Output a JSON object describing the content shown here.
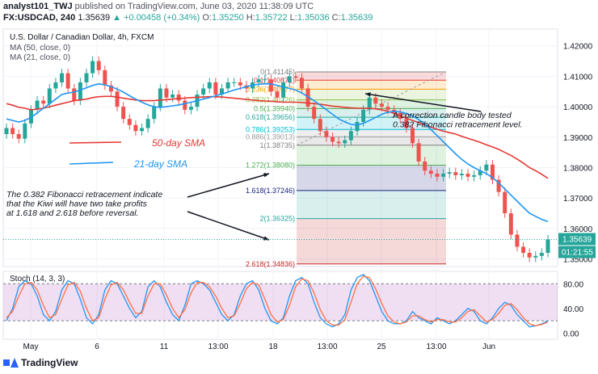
{
  "header": {
    "author": "analyst101_TWJ",
    "published": " published on TradingView.com, June 03, 2020 11:38:09 UTC",
    "symbol": "FX:USDCAD, 240",
    "last": "1.35639",
    "change": "+0.00458 (+0.34%)",
    "o_label": "O:",
    "o": "1.35250",
    "h_label": "H:",
    "h": "1.35722",
    "l_label": "L:",
    "l": "1.35036",
    "c_label": "C:",
    "c": "1.35639"
  },
  "footer": {
    "brand": "TradingView"
  },
  "chart_data": [
    {
      "type": "candlestick",
      "title": "U.S. Dollar / Canadian Dollar, 4h, FXCM",
      "indicators": [
        "MA (50, close, 0)",
        "MA (21, close, 0)"
      ],
      "x_ticks": [
        "May",
        "6",
        "11",
        "13:00",
        "18",
        "13:00",
        "25",
        "13:00",
        "Jun"
      ],
      "y_ticks": [
        "1.42000",
        "1.41000",
        "1.40000",
        "1.39000",
        "1.38000",
        "1.37000",
        "1.36000",
        "1.35000"
      ],
      "ylim": [
        1.3475,
        1.4255
      ],
      "last_price_label": "1.35639",
      "countdown_label": "01:21:55",
      "colors": {
        "up": "#26a69a",
        "down": "#ef5350",
        "sma50": "#e53935",
        "sma21": "#2196f3"
      },
      "close_series": [
        1.393,
        1.391,
        1.3895,
        1.3945,
        1.399,
        1.402,
        1.401,
        1.406,
        1.408,
        1.411,
        1.406,
        1.402,
        1.408,
        1.411,
        1.415,
        1.412,
        1.407,
        1.405,
        1.4,
        1.396,
        1.394,
        1.392,
        1.393,
        1.396,
        1.4,
        1.406,
        1.403,
        1.404,
        1.402,
        1.399,
        1.4,
        1.404,
        1.406,
        1.408,
        1.404,
        1.406,
        1.408,
        1.408,
        1.407,
        1.406,
        1.408,
        1.409,
        1.409,
        1.405,
        1.403,
        1.408,
        1.41,
        1.4095,
        1.406,
        1.4,
        1.396,
        1.392,
        1.39,
        1.3885,
        1.388,
        1.389,
        1.392,
        1.395,
        1.399,
        1.403,
        1.401,
        1.4,
        1.399,
        1.398,
        1.396,
        1.393,
        1.388,
        1.382,
        1.379,
        1.378,
        1.377,
        1.378,
        1.3785,
        1.3775,
        1.378,
        1.377,
        1.3775,
        1.379,
        1.381,
        1.376,
        1.372,
        1.365,
        1.358,
        1.354,
        1.352,
        1.3505,
        1.351,
        1.352,
        1.3564
      ],
      "sma50_series": [
        1.401,
        1.4005,
        1.3998,
        1.3995,
        1.399,
        1.3992,
        1.3995,
        1.4,
        1.4005,
        1.401,
        1.4015,
        1.402,
        1.4022,
        1.4025,
        1.403,
        1.4033,
        1.4034,
        1.4034,
        1.4032,
        1.4028,
        1.4025,
        1.4022,
        1.402,
        1.402,
        1.402,
        1.4022,
        1.4023,
        1.4025,
        1.4027,
        1.4028,
        1.403,
        1.4031,
        1.4032,
        1.4033,
        1.4033,
        1.4032,
        1.403,
        1.4028,
        1.4026,
        1.4024,
        1.4022,
        1.402,
        1.4019,
        1.4018,
        1.4016,
        1.4015,
        1.4015,
        1.4015,
        1.4014,
        1.4012,
        1.401,
        1.4008,
        1.4005,
        1.4002,
        1.4,
        1.3998,
        1.3996,
        1.3995,
        1.3995,
        1.3995,
        1.3993,
        1.399,
        1.3985,
        1.3978,
        1.397,
        1.3962,
        1.3955,
        1.3948,
        1.394,
        1.3933,
        1.3926,
        1.392,
        1.3915,
        1.391,
        1.3903,
        1.3896,
        1.389,
        1.3883,
        1.3875,
        1.3868,
        1.386,
        1.385,
        1.384,
        1.3828,
        1.3815,
        1.38,
        1.379,
        1.3778,
        1.3765
      ],
      "sma21_series": [
        1.396,
        1.3955,
        1.395,
        1.3955,
        1.3965,
        1.398,
        1.3995,
        1.401,
        1.4025,
        1.404,
        1.4045,
        1.4048,
        1.4055,
        1.4062,
        1.407,
        1.4075,
        1.4072,
        1.4066,
        1.4058,
        1.4048,
        1.4036,
        1.4025,
        1.4015,
        1.4006,
        1.4,
        1.3998,
        1.4,
        1.4003,
        1.4006,
        1.401,
        1.4015,
        1.402,
        1.4025,
        1.403,
        1.4036,
        1.4042,
        1.4048,
        1.4055,
        1.406,
        1.4066,
        1.407,
        1.4074,
        1.4075,
        1.4075,
        1.407,
        1.4065,
        1.406,
        1.4055,
        1.4045,
        1.4033,
        1.402,
        1.4005,
        1.399,
        1.3975,
        1.396,
        1.395,
        1.3942,
        1.394,
        1.3945,
        1.3955,
        1.3965,
        1.3975,
        1.3982,
        1.3985,
        1.3983,
        1.3978,
        1.397,
        1.3958,
        1.3943,
        1.3925,
        1.3905,
        1.3885,
        1.3865,
        1.3845,
        1.3827,
        1.3812,
        1.38,
        1.379,
        1.378,
        1.3767,
        1.375,
        1.373,
        1.371,
        1.369,
        1.367,
        1.365,
        1.364,
        1.363,
        1.3623
      ],
      "fibonacci": [
        {
          "label": "0(1.41145)",
          "price": 1.41145,
          "color": "#808080"
        },
        {
          "label": "0.1(1.40871)",
          "price": 1.40871,
          "color": "#e53935"
        },
        {
          "label": "0.236(1.40577)",
          "price": 1.40577,
          "color": "#ff9800"
        },
        {
          "label": "0.382(1.40226)",
          "price": 1.40226,
          "color": "#8bc34a"
        },
        {
          "label": "0.5(1.39940)",
          "price": 1.3994,
          "color": "#4caf50"
        },
        {
          "label": "0.618(1.39656)",
          "price": 1.39656,
          "color": "#26a69a"
        },
        {
          "label": "0.786(1.39253)",
          "price": 1.39253,
          "color": "#00bcd4"
        },
        {
          "label": "0.886(1.39013)",
          "price": 1.39013,
          "color": "#9e9e9e"
        },
        {
          "label": "1(1.38735)",
          "price": 1.38735,
          "color": "#808080"
        },
        {
          "label": "1.272(1.38080)",
          "price": 1.3808,
          "color": "#4caf50"
        },
        {
          "label": "1.618(1.37246)",
          "price": 1.37246,
          "color": "#1a237e"
        },
        {
          "label": "2(1.36325)",
          "price": 1.36325,
          "color": "#26a69a"
        },
        {
          "label": "2.618(1.34836)",
          "price": 1.34836,
          "color": "#c62828"
        }
      ],
      "annotations": [
        "The 0.382 Fibonacci retracement indicate that the Kiwi will have two take profits at 1.618 and 2.618 before reversal.",
        "A correction candle body tested 0.382 Fibonacci retracement level.",
        "50-day SMA",
        "21-day SMA"
      ]
    },
    {
      "type": "line",
      "title": "Stoch (14, 3, 3)",
      "y_ticks": [
        "80.00",
        "40.00",
        "0.00"
      ],
      "ylim": [
        -10,
        100
      ],
      "bands": [
        80,
        20
      ],
      "series": [
        {
          "color": "#2196f3",
          "values": [
            20,
            40,
            75,
            85,
            80,
            60,
            30,
            20,
            35,
            70,
            85,
            80,
            55,
            25,
            15,
            30,
            70,
            85,
            80,
            60,
            40,
            25,
            35,
            75,
            85,
            75,
            50,
            30,
            20,
            45,
            80,
            85,
            80,
            70,
            50,
            30,
            20,
            30,
            60,
            80,
            85,
            70,
            40,
            20,
            15,
            25,
            60,
            85,
            90,
            80,
            50,
            25,
            15,
            10,
            15,
            30,
            70,
            90,
            95,
            85,
            60,
            35,
            20,
            15,
            15,
            20,
            35,
            25,
            20,
            15,
            25,
            20,
            15,
            20,
            30,
            40,
            35,
            20,
            15,
            25,
            40,
            50,
            45,
            30,
            20,
            10,
            12,
            15,
            20
          ]
        },
        {
          "color": "#ff7043",
          "values": [
            25,
            35,
            60,
            80,
            82,
            70,
            45,
            25,
            30,
            55,
            78,
            82,
            68,
            40,
            20,
            25,
            55,
            78,
            82,
            70,
            50,
            32,
            32,
            60,
            80,
            80,
            62,
            40,
            25,
            38,
            65,
            82,
            82,
            75,
            60,
            40,
            25,
            28,
            48,
            72,
            82,
            78,
            55,
            30,
            18,
            22,
            45,
            75,
            88,
            85,
            65,
            38,
            20,
            13,
            13,
            22,
            50,
            80,
            92,
            90,
            72,
            48,
            28,
            18,
            15,
            18,
            28,
            28,
            22,
            18,
            22,
            22,
            18,
            18,
            25,
            35,
            38,
            28,
            18,
            22,
            32,
            45,
            48,
            38,
            25,
            15,
            12,
            14,
            18
          ]
        }
      ]
    }
  ]
}
